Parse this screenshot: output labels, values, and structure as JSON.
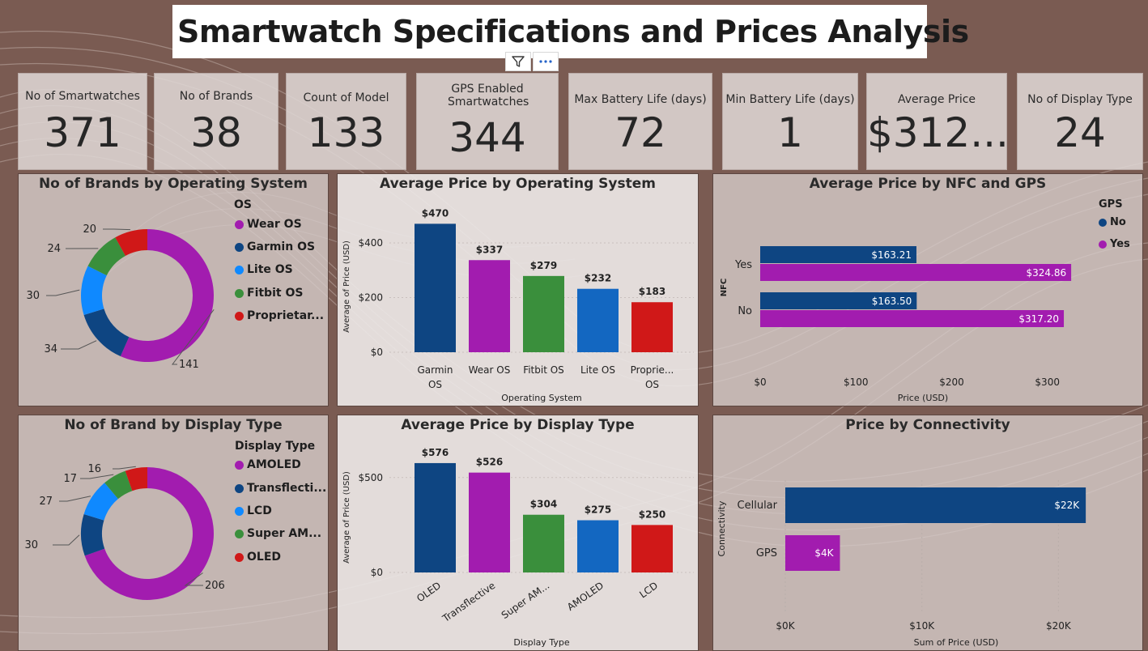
{
  "title": "Smartwatch Specifications and Prices Analysis",
  "icons": [
    "filter-icon",
    "more-options-icon"
  ],
  "kpis": [
    {
      "label": "No of Smartwatches",
      "value": "371"
    },
    {
      "label": "No of Brands",
      "value": "38"
    },
    {
      "label": "Count of Model",
      "value": "133"
    },
    {
      "label": "GPS Enabled Smartwatches",
      "value": "344"
    },
    {
      "label": "Max Battery Life (days)",
      "value": "72"
    },
    {
      "label": "Min Battery Life (days)",
      "value": "1"
    },
    {
      "label": "Average Price",
      "value": "$312...."
    },
    {
      "label": "No of Display Type",
      "value": "24"
    }
  ],
  "colors": {
    "purple": "#a21caf",
    "navy": "#0e4582",
    "blue": "#0f89ff",
    "green": "#3a8f3c",
    "red": "#d01818",
    "blue2": "#1367c1"
  },
  "chart_data": [
    {
      "id": "brands_by_os",
      "type": "pie",
      "title": "No of Brands by Operating System",
      "legend_title": "OS",
      "labels": [
        "Wear OS",
        "Garmin OS",
        "Lite OS",
        "Fitbit OS",
        "Proprietar..."
      ],
      "values": [
        141,
        34,
        30,
        24,
        20
      ],
      "colors": [
        "#a21caf",
        "#0e4582",
        "#0f89ff",
        "#3a8f3c",
        "#d01818"
      ]
    },
    {
      "id": "avg_price_by_os",
      "type": "bar",
      "title": "Average Price by Operating System",
      "categories": [
        [
          "Garmin",
          "OS"
        ],
        [
          "Wear OS"
        ],
        [
          "Fitbit OS"
        ],
        [
          "Lite OS"
        ],
        [
          "Proprie...",
          "OS"
        ]
      ],
      "values": [
        470,
        337,
        279,
        232,
        183
      ],
      "value_labels": [
        "$470",
        "$337",
        "$279",
        "$232",
        "$183"
      ],
      "colors": [
        "#0e4582",
        "#a21caf",
        "#3a8f3c",
        "#1367c1",
        "#d01818"
      ],
      "xlabel": "Operating System",
      "ylabel": "Average of Price (USD)",
      "yticks": [
        {
          "v": 0,
          "label": "$0"
        },
        {
          "v": 200,
          "label": "$200"
        },
        {
          "v": 400,
          "label": "$400"
        }
      ],
      "ylim": [
        0,
        480
      ]
    },
    {
      "id": "avg_price_by_nfc_gps",
      "type": "bar",
      "orientation": "horizontal",
      "title": "Average Price by NFC and GPS",
      "categories": [
        "Yes",
        "No"
      ],
      "series": [
        {
          "name": "No",
          "values": [
            163.21,
            163.5
          ],
          "labels": [
            "$163.21",
            "$163.50"
          ],
          "color": "#0e4582"
        },
        {
          "name": "Yes",
          "values": [
            324.86,
            317.2
          ],
          "labels": [
            "$324.86",
            "$317.20"
          ],
          "color": "#a21caf"
        }
      ],
      "legend_title": "GPS",
      "xlabel": "Price (USD)",
      "ylabel": "NFC",
      "xticks": [
        {
          "v": 0,
          "label": "$0"
        },
        {
          "v": 100,
          "label": "$100"
        },
        {
          "v": 200,
          "label": "$200"
        },
        {
          "v": 300,
          "label": "$300"
        }
      ],
      "xlim": [
        0,
        340
      ]
    },
    {
      "id": "brands_by_display",
      "type": "pie",
      "title": "No of Brand by Display Type",
      "legend_title": "Display Type",
      "labels": [
        "AMOLED",
        "Transflecti...",
        "LCD",
        "Super AM...",
        "OLED"
      ],
      "values": [
        206,
        30,
        27,
        17,
        16
      ],
      "colors": [
        "#a21caf",
        "#0e4582",
        "#0f89ff",
        "#3a8f3c",
        "#d01818"
      ]
    },
    {
      "id": "avg_price_by_display",
      "type": "bar",
      "title": "Average Price by Display Type",
      "categories": [
        "OLED",
        "Transflective",
        "Super AM...",
        "AMOLED",
        "LCD"
      ],
      "values": [
        576,
        526,
        304,
        275,
        250
      ],
      "value_labels": [
        "$576",
        "$526",
        "$304",
        "$275",
        "$250"
      ],
      "colors": [
        "#0e4582",
        "#a21caf",
        "#3a8f3c",
        "#1367c1",
        "#d01818"
      ],
      "xlabel": "Display Type",
      "ylabel": "Average of Price (USD)",
      "yticks": [
        {
          "v": 0,
          "label": "$0"
        },
        {
          "v": 500,
          "label": "$500"
        }
      ],
      "ylim": [
        0,
        580
      ]
    },
    {
      "id": "price_by_connectivity",
      "type": "bar",
      "orientation": "horizontal",
      "title": "Price by Connectivity",
      "categories": [
        "Cellular",
        "GPS"
      ],
      "values": [
        22000,
        4000
      ],
      "value_labels": [
        "$22K",
        "$4K"
      ],
      "colors": [
        "#0e4582",
        "#a21caf"
      ],
      "xlabel": "Sum of Price (USD)",
      "ylabel": "Connectivity",
      "xticks": [
        {
          "v": 0,
          "label": "$0K"
        },
        {
          "v": 10000,
          "label": "$10K"
        },
        {
          "v": 20000,
          "label": "$20K"
        }
      ],
      "xlim": [
        0,
        23000
      ]
    }
  ]
}
